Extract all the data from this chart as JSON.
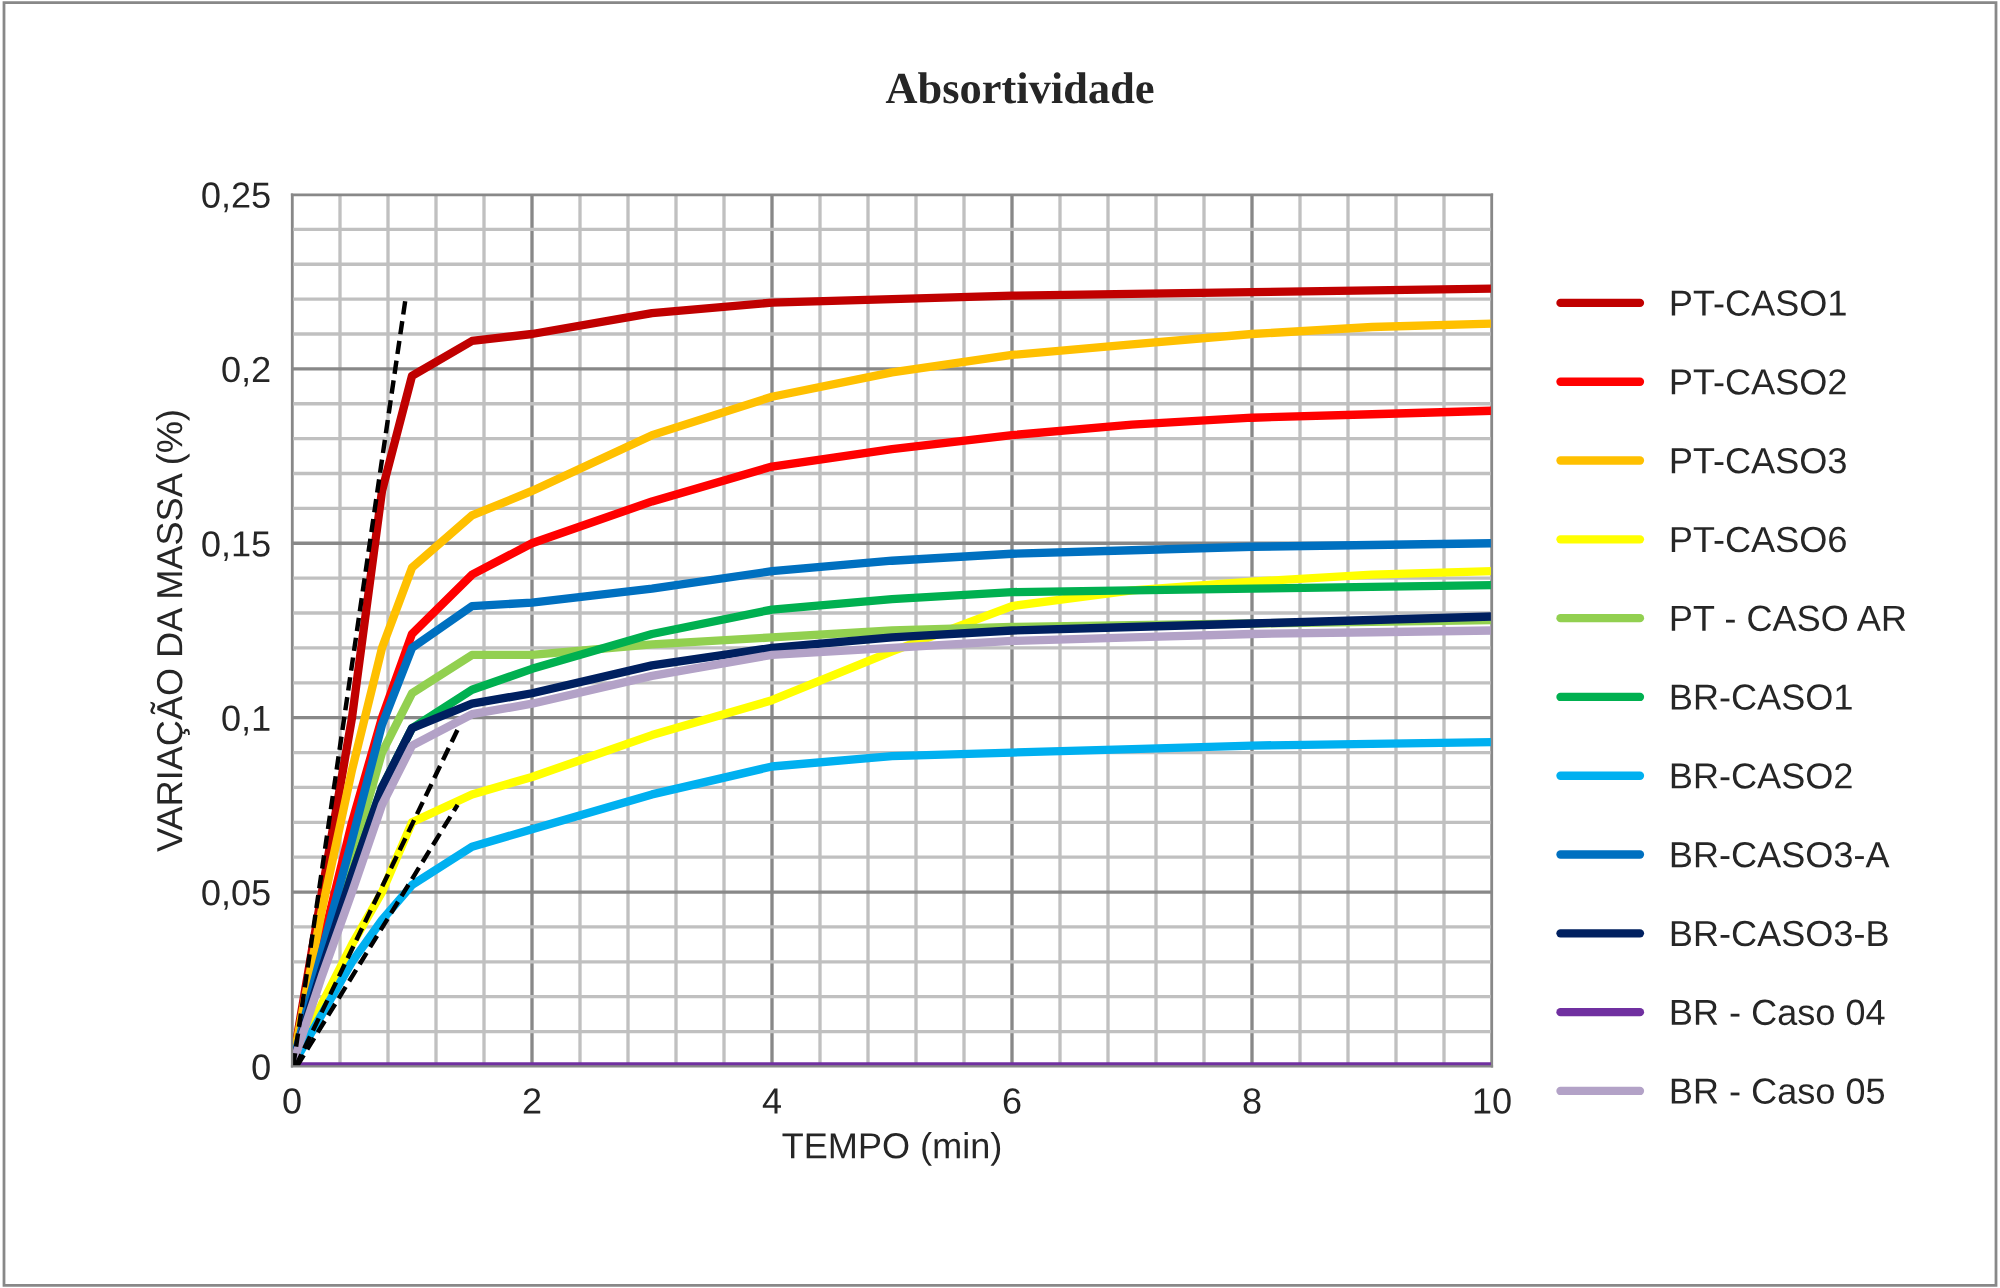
{
  "chart_data": {
    "type": "line",
    "title": "Absortividade",
    "xlabel": "TEMPO (min)",
    "ylabel": "VARIAÇÃO DA MASSA (%)",
    "x": [
      0,
      0.25,
      0.5,
      0.75,
      1,
      1.5,
      2,
      3,
      4,
      5,
      6,
      7,
      8,
      9,
      10
    ],
    "series": [
      {
        "name": "PT-CASO1",
        "color": "#c00000",
        "values": [
          0,
          0.05,
          0.1,
          0.165,
          0.198,
          0.208,
          0.21,
          0.216,
          0.219,
          0.22,
          0.221,
          0.2215,
          0.222,
          0.2225,
          0.223
        ]
      },
      {
        "name": "PT-CASO2",
        "color": "#ff0000",
        "values": [
          0,
          0.035,
          0.07,
          0.1,
          0.124,
          0.141,
          0.15,
          0.162,
          0.172,
          0.177,
          0.181,
          0.184,
          0.186,
          0.187,
          0.188
        ]
      },
      {
        "name": "PT-CASO3",
        "color": "#ffc000",
        "values": [
          0,
          0.045,
          0.085,
          0.12,
          0.143,
          0.158,
          0.165,
          0.181,
          0.192,
          0.199,
          0.204,
          0.207,
          0.21,
          0.212,
          0.213
        ]
      },
      {
        "name": "PT-CASO6",
        "color": "#ffff00",
        "values": [
          0,
          0.018,
          0.035,
          0.05,
          0.07,
          0.078,
          0.083,
          0.095,
          0.105,
          0.119,
          0.132,
          0.1365,
          0.139,
          0.141,
          0.142
        ]
      },
      {
        "name": "PT - CASO AR",
        "color": "#92d050",
        "values": [
          0,
          0.03,
          0.06,
          0.09,
          0.107,
          0.118,
          0.118,
          0.121,
          0.123,
          0.125,
          0.126,
          0.1265,
          0.127,
          0.1275,
          0.128
        ]
      },
      {
        "name": "BR-CASO1",
        "color": "#00b050",
        "values": [
          0,
          0.028,
          0.055,
          0.08,
          0.097,
          0.108,
          0.114,
          0.124,
          0.131,
          0.134,
          0.136,
          0.1365,
          0.137,
          0.1375,
          0.138
        ]
      },
      {
        "name": "BR-CASO2",
        "color": "#00b0f0",
        "values": [
          0,
          0.015,
          0.03,
          0.042,
          0.052,
          0.063,
          0.068,
          0.078,
          0.086,
          0.089,
          0.09,
          0.091,
          0.092,
          0.0925,
          0.093
        ]
      },
      {
        "name": "BR-CASO3-A",
        "color": "#0070c0",
        "values": [
          0,
          0.033,
          0.065,
          0.098,
          0.12,
          0.132,
          0.133,
          0.137,
          0.142,
          0.145,
          0.147,
          0.148,
          0.149,
          0.1495,
          0.15
        ]
      },
      {
        "name": "BR-CASO3-B",
        "color": "#002060",
        "values": [
          0,
          0.028,
          0.055,
          0.08,
          0.097,
          0.104,
          0.107,
          0.115,
          0.12,
          0.123,
          0.125,
          0.126,
          0.127,
          0.128,
          0.129
        ]
      },
      {
        "name": "BR - Caso 04",
        "color": "#7030a0",
        "values": [
          0,
          0,
          0,
          0,
          0,
          0,
          0,
          0,
          0,
          0,
          0,
          0,
          0,
          0,
          0
        ]
      },
      {
        "name": "BR - Caso 05",
        "color": "#b3a2c7",
        "values": [
          0,
          0.026,
          0.05,
          0.075,
          0.092,
          0.101,
          0.104,
          0.112,
          0.118,
          0.12,
          0.122,
          0.123,
          0.124,
          0.1245,
          0.125
        ]
      },
      {
        "color": "#000000",
        "line_style": "dashed",
        "x": [
          0.01,
          0.95
        ],
        "values": [
          0,
          0.221
        ]
      },
      {
        "color": "#000000",
        "line_style": "dashed",
        "x": [
          0.03,
          1.4
        ],
        "values": [
          0,
          0.098
        ]
      },
      {
        "color": "#000000",
        "line_style": "dashed",
        "x": [
          0.04,
          1.38
        ],
        "values": [
          0,
          0.075
        ]
      }
    ],
    "xlim": [
      0,
      10
    ],
    "ylim": [
      0,
      0.25
    ],
    "xticks": [
      0,
      {
        "value": 0.4,
        "label": null
      },
      {
        "value": 0.8,
        "label": null
      },
      {
        "value": 1.2,
        "label": null
      },
      {
        "value": 1.6,
        "label": null
      },
      2,
      {
        "value": 2.4,
        "label": null
      },
      {
        "value": 2.8,
        "label": null
      },
      {
        "value": 3.2,
        "label": null
      },
      {
        "value": 3.6,
        "label": null
      },
      4,
      {
        "value": 4.4,
        "label": null
      },
      {
        "value": 4.8,
        "label": null
      },
      {
        "value": 5.2,
        "label": null
      },
      {
        "value": 5.6,
        "label": null
      },
      6,
      {
        "value": 6.4,
        "label": null
      },
      {
        "value": 6.8,
        "label": null
      },
      {
        "value": 7.2,
        "label": null
      },
      {
        "value": 7.6,
        "label": null
      },
      8,
      {
        "value": 8.4,
        "label": null
      },
      {
        "value": 8.8,
        "label": null
      },
      {
        "value": 9.2,
        "label": null
      },
      {
        "value": 9.6,
        "label": null
      },
      10
    ],
    "yticks": [
      0,
      {
        "value": 0.01,
        "label": null
      },
      {
        "value": 0.02,
        "label": null
      },
      {
        "value": 0.03,
        "label": null
      },
      {
        "value": 0.04,
        "label": null
      },
      {
        "value": 0.05,
        "label": "0,05"
      },
      {
        "value": 0.06,
        "label": null
      },
      {
        "value": 0.07,
        "label": null
      },
      {
        "value": 0.08,
        "label": null
      },
      {
        "value": 0.09,
        "label": null
      },
      {
        "value": 0.1,
        "label": "0,1"
      },
      {
        "value": 0.11,
        "label": null
      },
      {
        "value": 0.12,
        "label": null
      },
      {
        "value": 0.13,
        "label": null
      },
      {
        "value": 0.14,
        "label": null
      },
      {
        "value": 0.15,
        "label": "0,15"
      },
      {
        "value": 0.16,
        "label": null
      },
      {
        "value": 0.17,
        "label": null
      },
      {
        "value": 0.18,
        "label": null
      },
      {
        "value": 0.19,
        "label": null
      },
      {
        "value": 0.2,
        "label": "0,2"
      },
      {
        "value": 0.21,
        "label": null
      },
      {
        "value": 0.22,
        "label": null
      },
      {
        "value": 0.23,
        "label": null
      },
      {
        "value": 0.24,
        "label": null
      },
      {
        "value": 0.25,
        "label": "0,25"
      }
    ],
    "grid": true,
    "legend": "right",
    "marker": "none",
    "line_style": "solid"
  }
}
